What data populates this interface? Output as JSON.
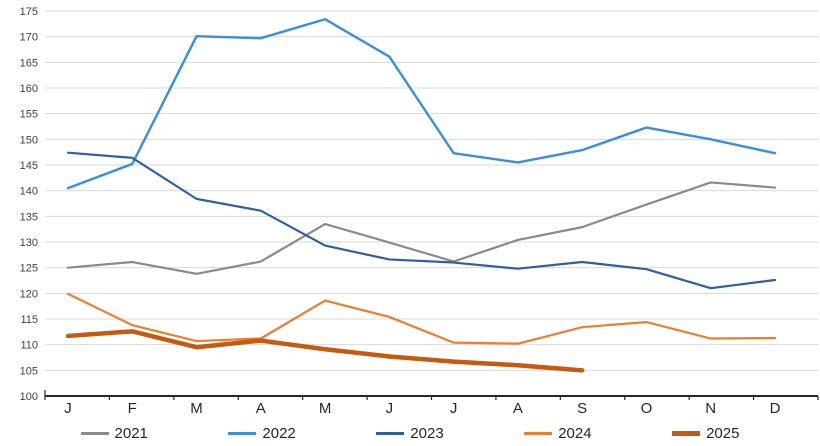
{
  "chart_data": {
    "type": "line",
    "categories": [
      "J",
      "F",
      "M",
      "A",
      "M",
      "J",
      "J",
      "A",
      "S",
      "O",
      "N",
      "D"
    ],
    "series": [
      {
        "name": "2021",
        "color": "#8a8a8a",
        "width": 2.2,
        "values": [
          125,
          126.1,
          123.8,
          126.2,
          133.5,
          129.9,
          126.2,
          130.4,
          132.9,
          137.3,
          141.6,
          140.6
        ]
      },
      {
        "name": "2022",
        "color": "#3a8de0",
        "width": 2.4,
        "values": [
          140.5,
          145.2,
          170.1,
          169.7,
          173.4,
          166.1,
          147.3,
          145.5,
          147.9,
          152.3,
          150,
          147.3
        ]
      },
      {
        "name": "2023",
        "color": "#2e5fa3",
        "width": 2.2,
        "values": [
          147.4,
          146.4,
          138.4,
          136.1,
          129.3,
          126.6,
          126,
          124.8,
          126.1,
          124.7,
          121,
          122.6
        ]
      },
      {
        "name": "2024",
        "color": "#ed7d31",
        "width": 2.2,
        "values": [
          119.9,
          113.8,
          110.7,
          111.2,
          118.6,
          115.4,
          110.4,
          110.2,
          113.4,
          114.4,
          111.2,
          111.3
        ]
      },
      {
        "name": "2025",
        "color": "#c55a11",
        "width": 4.5,
        "values": [
          111.7,
          112.6,
          109.5,
          110.8,
          109.1,
          107.7,
          106.7,
          106,
          105,
          null,
          null,
          null
        ]
      }
    ],
    "title": "",
    "xlabel": "",
    "ylabel": "",
    "ylim": [
      100,
      175
    ],
    "ytick_step": 5,
    "ytick_labels": [
      "100",
      "105",
      "110",
      "115",
      "120",
      "125",
      "130",
      "135",
      "140",
      "145",
      "150",
      "155",
      "160",
      "165",
      "170",
      "175"
    ],
    "grid": true,
    "gridline_color": "#d9d9d9",
    "axis_color": "#262626",
    "legend_position": "bottom",
    "legend_entries": [
      "2021",
      "2022",
      "2023",
      "2024",
      "2025"
    ]
  }
}
